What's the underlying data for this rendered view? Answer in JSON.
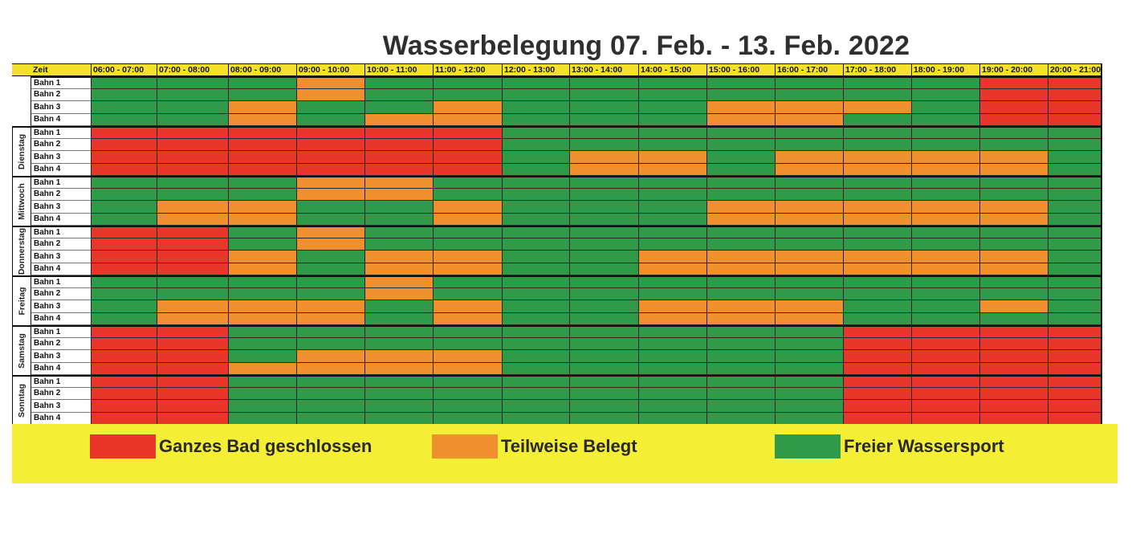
{
  "title": "Wasserbelegung 07. Feb. - 13. Feb. 2022",
  "colors": {
    "R": "#e8372a",
    "O": "#ef8f2e",
    "G": "#2f9a48"
  },
  "header": {
    "zeit_label": "Zeit",
    "hours": [
      "06:00 - 07:00",
      "07:00 - 08:00",
      "08:00 - 09:00",
      "09:00 - 10:00",
      "10:00 - 11:00",
      "11:00 - 12:00",
      "12:00 - 13:00",
      "13:00 - 14:00",
      "14:00 - 15:00",
      "15:00 - 16:00",
      "16:00 - 17:00",
      "17:00 - 18:00",
      "18:00 - 19:00",
      "19:00 - 20:00",
      "20:00 - 21:00"
    ]
  },
  "days": [
    {
      "name": "",
      "lanes": [
        {
          "label": "Bahn 1",
          "cells": "GGGOGGGGGGGGGRR"
        },
        {
          "label": "Bahn 2",
          "cells": "GGGOGGGGGGGGGRR"
        },
        {
          "label": "Bahn 3",
          "cells": "GGOGGOGGGOOOGRR"
        },
        {
          "label": "Bahn 4",
          "cells": "GGOGOOGGGOOGGRR"
        }
      ]
    },
    {
      "name": "Dienstag",
      "lanes": [
        {
          "label": "Bahn 1",
          "cells": "RRRRRRGGGGGGGGG"
        },
        {
          "label": "Bahn 2",
          "cells": "RRRRRRGGGGGGGGG"
        },
        {
          "label": "Bahn 3",
          "cells": "RRRRRRGOOGOOOOG"
        },
        {
          "label": "Bahn 4",
          "cells": "RRRRRRGOOGOOOOG"
        }
      ]
    },
    {
      "name": "Mittwoch",
      "lanes": [
        {
          "label": "Bahn 1",
          "cells": "GGGOOGGGGGGGGGG"
        },
        {
          "label": "Bahn 2",
          "cells": "GGGOOGGGGGGGGGG"
        },
        {
          "label": "Bahn 3",
          "cells": "GOOGGOGGGOOOOOG"
        },
        {
          "label": "Bahn 4",
          "cells": "GOOGGOGGGOOOOOG"
        }
      ]
    },
    {
      "name": "Donnerstag",
      "lanes": [
        {
          "label": "Bahn 1",
          "cells": "RRGOGGGGGGGGGGG"
        },
        {
          "label": "Bahn 2",
          "cells": "RRGOGGGGGGGGGGG"
        },
        {
          "label": "Bahn 3",
          "cells": "RROGOOGGOOOOOOG"
        },
        {
          "label": "Bahn 4",
          "cells": "RROGOOGGOOOOOOG"
        }
      ]
    },
    {
      "name": "Freitag",
      "lanes": [
        {
          "label": "Bahn 1",
          "cells": "GGGGOGGGGGGGGGG"
        },
        {
          "label": "Bahn 2",
          "cells": "GGGGOGGGGGGGGGG"
        },
        {
          "label": "Bahn 3",
          "cells": "GOOOGOGGOOOGGOG"
        },
        {
          "label": "Bahn 4",
          "cells": "GOOOGOGGOOOGGGG"
        }
      ]
    },
    {
      "name": "Samstag",
      "lanes": [
        {
          "label": "Bahn 1",
          "cells": "RRGGGGGGGGGRRRR"
        },
        {
          "label": "Bahn 2",
          "cells": "RRGGGGGGGGGRRRR"
        },
        {
          "label": "Bahn 3",
          "cells": "RRGOOOGGGGGRRRR"
        },
        {
          "label": "Bahn 4",
          "cells": "RROOOOGGGGGRRRR"
        }
      ]
    },
    {
      "name": "Sonntag",
      "lanes": [
        {
          "label": "Bahn 1",
          "cells": "RRGGGGGGGGGRRRR"
        },
        {
          "label": "Bahn 2",
          "cells": "RRGGGGGGGGGRRRR"
        },
        {
          "label": "Bahn 3",
          "cells": "RRGGGGGGGGGRRRR"
        },
        {
          "label": "Bahn 4",
          "cells": "RRGGGGGGGGGRRRR"
        }
      ]
    }
  ],
  "legend": [
    {
      "color_key": "R",
      "label": "Ganzes Bad geschlossen"
    },
    {
      "color_key": "O",
      "label": "Teilweise Belegt"
    },
    {
      "color_key": "G",
      "label": "Freier Wassersport"
    }
  ]
}
